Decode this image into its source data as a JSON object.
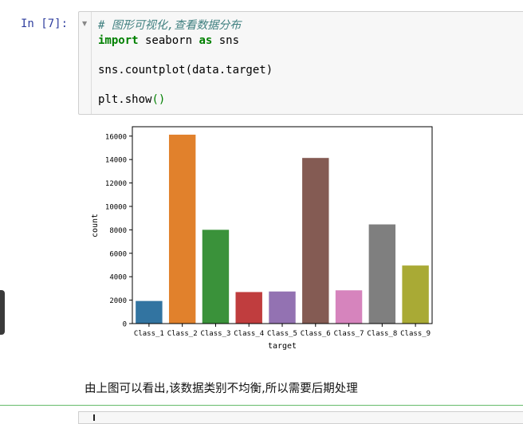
{
  "cell": {
    "prompt": "In [7]:",
    "code": {
      "comment": "# 图形可视化,查看数据分布",
      "import_kw": "import",
      "import_module": " seaborn ",
      "as_kw": "as",
      "alias": " sns",
      "line3": "sns.countplot(data.target)",
      "line5_prefix": "plt.show",
      "line5_parens": "()"
    }
  },
  "chart_data": {
    "type": "bar",
    "categories": [
      "Class_1",
      "Class_2",
      "Class_3",
      "Class_4",
      "Class_5",
      "Class_6",
      "Class_7",
      "Class_8",
      "Class_9"
    ],
    "values": [
      1929,
      16122,
      8004,
      2691,
      2739,
      14135,
      2839,
      8464,
      4955
    ],
    "colors": [
      "#3274a1",
      "#e1812c",
      "#3a923a",
      "#c03d3e",
      "#9372b2",
      "#845b53",
      "#d684bd",
      "#7f7f7f",
      "#a9aa35"
    ],
    "xlabel": "target",
    "ylabel": "count",
    "ylim": [
      0,
      16800
    ],
    "yticks": [
      0,
      2000,
      4000,
      6000,
      8000,
      10000,
      12000,
      14000,
      16000
    ],
    "grid": false,
    "legend": "none"
  },
  "markdown": {
    "text": "由上图可以看出,该数据类别不均衡,所以需要后期处理"
  }
}
